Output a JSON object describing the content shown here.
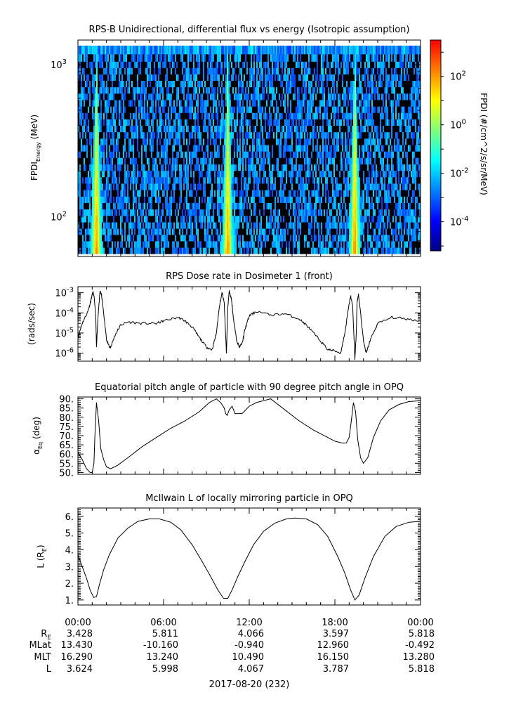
{
  "chart_data": [
    {
      "type": "heatmap",
      "title": "RPS-B  Unidirectional, differential flux vs energy (Isotropic assumption)",
      "ylabel_main": "FPDI",
      "ylabel_sub": "Energy",
      "ylabel_unit": " (MeV)",
      "yscale": "log",
      "ylim": [
        55,
        1450
      ],
      "yticks": [
        {
          "value": 100,
          "base": "10",
          "exp": "2"
        },
        {
          "value": 1000,
          "base": "10",
          "exp": "3"
        }
      ],
      "energy_channels_mev": [
        60,
        66,
        73,
        80,
        88,
        97,
        107,
        118,
        130,
        143,
        158,
        174,
        192,
        211,
        233,
        257,
        283,
        312,
        344,
        379,
        418,
        460,
        507,
        559,
        616,
        679,
        748,
        824,
        908,
        1000,
        1100,
        1250
      ],
      "xlim_hours": [
        0,
        24
      ],
      "peak_hours": [
        1.3,
        10.5,
        19.4
      ],
      "colorbar": {
        "label": "FPDI (#/cm^2/s/sr/MeV)",
        "scale": "log",
        "range_exp": [
          -5.2,
          3.5
        ],
        "ticks": [
          {
            "base": "10",
            "exp": "2",
            "value": 100
          },
          {
            "base": "10",
            "exp": "0",
            "value": 1
          },
          {
            "base": "10",
            "exp": "-2",
            "value": 0.01
          },
          {
            "base": "10",
            "exp": "-4",
            "value": 0.0001
          }
        ],
        "colors": [
          "#00007f",
          "#0000ff",
          "#007fff",
          "#00ffff",
          "#7fff7f",
          "#ffff00",
          "#ff7f00",
          "#ff0000"
        ]
      },
      "grid": false
    },
    {
      "type": "line",
      "title": "RPS  Dose rate in Dosimeter 1 (front)",
      "ylabel": "(rads/sec)",
      "yscale": "log",
      "ylim": [
        4e-07,
        0.002
      ],
      "yticks": [
        {
          "value": 0.001,
          "base": "10",
          "exp": "-3"
        },
        {
          "value": 0.0001,
          "base": "10",
          "exp": "-4"
        },
        {
          "value": 1e-05,
          "base": "10",
          "exp": "-5"
        },
        {
          "value": 1e-06,
          "base": "10",
          "exp": "-6"
        }
      ],
      "x_hours": [
        0,
        0.3,
        0.7,
        0.9,
        1.05,
        1.15,
        1.25,
        1.3,
        1.4,
        1.55,
        1.65,
        1.8,
        2.0,
        2.2,
        2.3,
        2.6,
        3.0,
        3.5,
        4.5,
        5.5,
        6.0,
        7.0,
        7.5,
        8.0,
        8.5,
        9.0,
        9.4,
        9.7,
        9.9,
        10.1,
        10.25,
        10.4,
        10.5,
        10.6,
        10.75,
        10.9,
        11.1,
        11.3,
        11.5,
        11.7,
        12.0,
        12.5,
        13.5,
        14.5,
        15.5,
        16.0,
        16.5,
        17.0,
        17.5,
        18.0,
        18.4,
        18.7,
        18.9,
        19.1,
        19.25,
        19.4,
        19.5,
        19.55,
        19.65,
        19.8,
        20.0,
        20.2,
        20.5,
        21.0,
        22.0,
        23.0,
        24.0
      ],
      "y_rads_per_sec": [
        6e-06,
        3e-05,
        0.00012,
        0.0004,
        0.0011,
        0.0005,
        6e-05,
        2e-06,
        6e-05,
        0.0012,
        0.0008,
        0.0001,
        5e-06,
        2e-06,
        2e-06,
        8e-06,
        2.5e-05,
        3.5e-05,
        3e-05,
        3e-05,
        4e-05,
        6e-05,
        4e-05,
        2e-05,
        6e-06,
        2e-06,
        1.5e-06,
        1e-05,
        0.0002,
        0.001,
        0.0003,
        1e-06,
        0.0002,
        0.0012,
        0.0005,
        5e-05,
        5e-06,
        2e-06,
        3e-06,
        1.5e-05,
        7e-05,
        0.00012,
        8e-05,
        9e-05,
        5e-05,
        2.5e-05,
        1e-05,
        4e-06,
        1.5e-06,
        1.3e-06,
        1e-06,
        1e-05,
        0.0001,
        0.0007,
        0.0002,
        5e-07,
        1e-05,
        0.0003,
        0.0008,
        0.0001,
        4e-06,
        1e-06,
        5e-06,
        3e-05,
        6e-05,
        5e-05,
        4e-05
      ],
      "grid": false
    },
    {
      "type": "line",
      "title": "Equatorial pitch angle of particle with 90 degree pitch angle in OPQ",
      "ylabel_main": "α",
      "ylabel_sub": "Eq",
      "ylabel_unit": " (deg)",
      "ylim": [
        49,
        91
      ],
      "yticks": [
        50,
        55,
        60,
        65,
        70,
        75,
        80,
        85,
        90
      ],
      "x_hours": [
        0,
        0.3,
        0.6,
        0.85,
        1.0,
        1.12,
        1.2,
        1.3,
        1.45,
        1.6,
        1.8,
        2.0,
        2.3,
        2.8,
        3.5,
        4.5,
        5.5,
        6.5,
        7.5,
        8.5,
        9.2,
        9.7,
        10.0,
        10.25,
        10.35,
        10.45,
        10.6,
        10.8,
        11.0,
        11.5,
        12.0,
        12.5,
        13.5,
        14.5,
        15.5,
        16.5,
        17.5,
        18.0,
        18.5,
        18.8,
        19.0,
        19.15,
        19.3,
        19.45,
        19.6,
        19.8,
        20.0,
        20.3,
        20.7,
        21.2,
        21.8,
        22.5,
        23.2,
        24.0
      ],
      "y_deg": [
        61,
        57,
        52,
        50,
        50,
        55,
        72,
        88,
        78,
        63,
        57,
        53,
        52,
        54,
        58,
        64,
        69,
        74,
        78,
        83,
        88,
        90,
        88,
        85,
        82,
        81,
        84,
        86,
        82,
        82,
        86,
        88,
        90,
        84,
        78,
        73,
        69,
        67,
        66,
        66,
        69,
        78,
        88,
        83,
        68,
        58,
        55,
        58,
        69,
        78,
        84,
        87,
        88.5,
        89
      ],
      "grid": false
    },
    {
      "type": "line",
      "title": "McIlwain L of locally mirroring particle in OPQ",
      "ylabel_main": "L (R",
      "ylabel_sub": "E",
      "ylabel_unit": ")",
      "ylim": [
        0.7,
        6.5
      ],
      "yticks": [
        1,
        2,
        3,
        4,
        5,
        6
      ],
      "x_hours": [
        0,
        0.3,
        0.6,
        0.85,
        1.1,
        1.3,
        1.5,
        1.8,
        2.2,
        2.8,
        3.5,
        4.2,
        5.0,
        5.7,
        6.5,
        7.2,
        8.0,
        8.7,
        9.3,
        9.8,
        10.2,
        10.5,
        10.8,
        11.2,
        11.7,
        12.3,
        13.0,
        13.8,
        14.6,
        15.2,
        16.0,
        16.8,
        17.5,
        18.2,
        18.7,
        19.1,
        19.4,
        19.7,
        20.1,
        20.7,
        21.5,
        22.3,
        23.2,
        24.0
      ],
      "y_L": [
        3.7,
        3.0,
        2.3,
        1.6,
        1.15,
        1.2,
        1.9,
        2.8,
        3.7,
        4.7,
        5.3,
        5.7,
        5.85,
        5.85,
        5.65,
        5.2,
        4.3,
        3.3,
        2.4,
        1.6,
        1.1,
        1.1,
        1.6,
        2.4,
        3.3,
        4.3,
        5.1,
        5.6,
        5.85,
        5.9,
        5.85,
        5.5,
        4.8,
        3.6,
        2.6,
        1.6,
        1.0,
        1.3,
        2.3,
        3.6,
        4.8,
        5.4,
        5.65,
        5.7
      ],
      "grid": false
    }
  ],
  "time_axis": {
    "tick_labels": [
      "00:00",
      "06:00",
      "12:00",
      "18:00",
      "00:00"
    ],
    "row_labels": [
      {
        "main": "R",
        "sub": "E"
      },
      {
        "main": "MLat",
        "sub": ""
      },
      {
        "main": "MLT",
        "sub": ""
      },
      {
        "main": "L",
        "sub": ""
      }
    ],
    "rows": [
      [
        "3.428",
        "5.811",
        "4.066",
        "3.597",
        "5.818"
      ],
      [
        "13.430",
        "-10.160",
        "-0.940",
        "12.960",
        "-0.492"
      ],
      [
        "16.290",
        "13.240",
        "10.490",
        "16.150",
        "13.280"
      ],
      [
        "3.624",
        "5.998",
        "4.067",
        "3.787",
        "5.818"
      ]
    ],
    "date_label": "2017-08-20 (232)"
  }
}
